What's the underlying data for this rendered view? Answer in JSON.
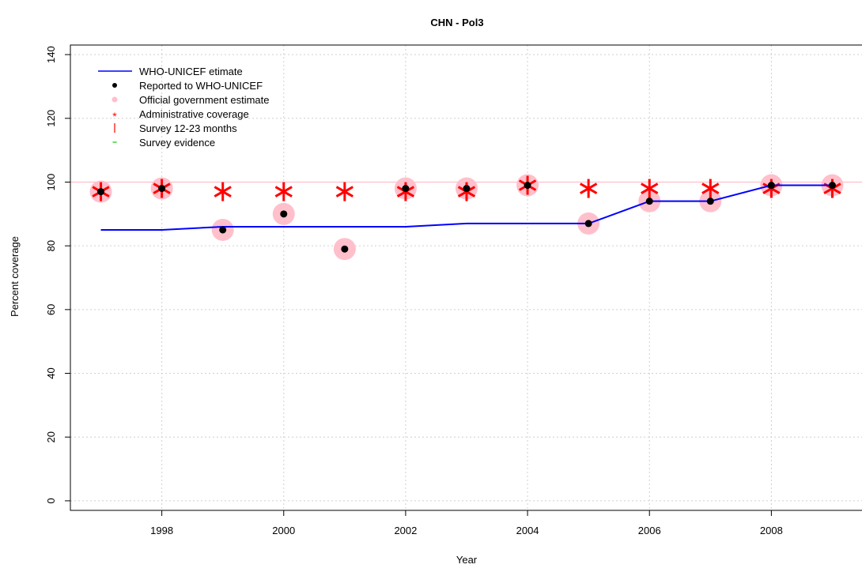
{
  "chart_data": {
    "type": "line",
    "title": "CHN  -  Pol3",
    "xlabel": "Year",
    "ylabel": "Percent coverage",
    "xlim": [
      1996.5,
      2009.5
    ],
    "ylim": [
      -3,
      143
    ],
    "x_ticks": [
      1998,
      2000,
      2002,
      2004,
      2006,
      2008
    ],
    "y_ticks": [
      0,
      20,
      40,
      60,
      80,
      100,
      120,
      140
    ],
    "grid": true,
    "reference_line": {
      "y": 100,
      "color": "#ffc0cb"
    },
    "legend_position": "top-left",
    "legend": [
      {
        "label": "WHO-UNICEF etimate",
        "symbol": "line",
        "color": "#0000ff"
      },
      {
        "label": "Reported to WHO-UNICEF",
        "symbol": "dot",
        "color": "#000000"
      },
      {
        "label": "Official government estimate",
        "symbol": "disc",
        "color": "#ffc0cb"
      },
      {
        "label": "Administrative coverage",
        "symbol": "asterisk",
        "color": "#ff0000"
      },
      {
        "label": "Survey 12-23 months",
        "symbol": "bar",
        "color": "#ff0000"
      },
      {
        "label": "Survey evidence",
        "symbol": "dash",
        "color": "#00cc00"
      }
    ],
    "series": [
      {
        "name": "WHO-UNICEF etimate",
        "color": "#0000ff",
        "x": [
          1997,
          1998,
          1999,
          2000,
          2001,
          2002,
          2003,
          2004,
          2005,
          2006,
          2007,
          2008,
          2009
        ],
        "values": [
          85,
          85,
          86,
          86,
          86,
          86,
          87,
          87,
          87,
          94,
          94,
          99,
          99
        ]
      },
      {
        "name": "Reported to WHO-UNICEF",
        "color": "#000000",
        "x": [
          1997,
          1998,
          1999,
          2000,
          2001,
          2002,
          2003,
          2004,
          2005,
          2006,
          2007,
          2008,
          2009
        ],
        "values": [
          97,
          98,
          85,
          90,
          79,
          98,
          98,
          99,
          87,
          94,
          94,
          99,
          99
        ]
      },
      {
        "name": "Official government estimate",
        "color": "#ffc0cb",
        "x": [
          1997,
          1998,
          1999,
          2000,
          2001,
          2002,
          2003,
          2004,
          2005,
          2006,
          2007,
          2008,
          2009
        ],
        "values": [
          97,
          98,
          85,
          90,
          79,
          98,
          98,
          99,
          87,
          94,
          94,
          99,
          99
        ]
      },
      {
        "name": "Administrative coverage",
        "color": "#ff0000",
        "x": [
          1997,
          1998,
          1999,
          2000,
          2001,
          2002,
          2003,
          2004,
          2005,
          2006,
          2007,
          2008,
          2009
        ],
        "values": [
          97,
          98,
          97,
          97,
          97,
          97,
          97,
          99,
          98,
          98,
          98,
          98,
          98
        ]
      }
    ]
  }
}
